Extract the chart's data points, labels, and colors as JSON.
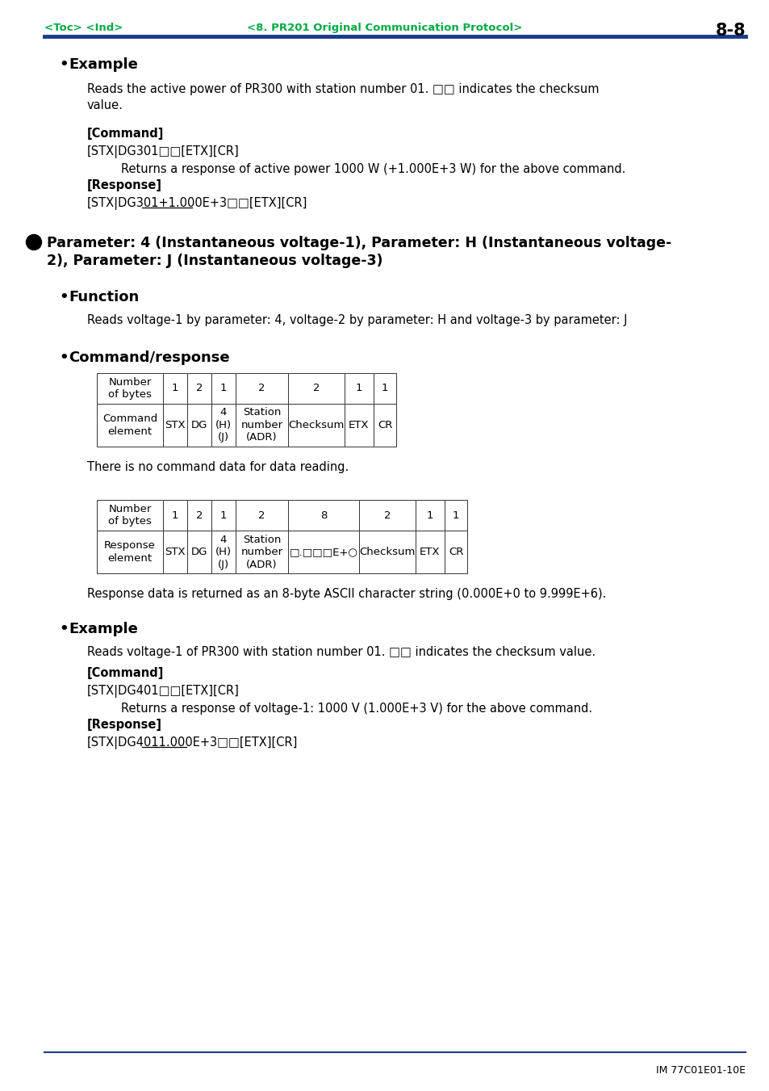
{
  "page_num": "8-8",
  "header_left": "<Toc> <Ind>",
  "header_center": "<8. PR201 Original Communication Protocol>",
  "header_color": "#00aa44",
  "header_line_color": "#1a3a8a",
  "bg_color": "#ffffff",
  "footer_text": "IM 77C01E01-10E",
  "section1_bullet": "Example",
  "section1_text1": "Reads the active power of PR300 with station number 01. □□ indicates the checksum\nvalue.",
  "section1_cmd_label": "[Command]",
  "section1_cmd_text": "[STX|DG301□□[ETX][CR]",
  "section1_cmd_response_text": "Returns a response of active power 1000 W (+1.000E+3 W) for the above command.",
  "section1_resp_label": "[Response]",
  "section1_resp_pre": "[STX|DG301",
  "section1_resp_underlined": "+1.000E+3",
  "section1_resp_post": "□□[ETX][CR]",
  "section2_line1": "Parameter: 4 (Instantaneous voltage-1), Parameter: H (Instantaneous voltage-",
  "section2_line2": "2), Parameter: J (Instantaneous voltage-3)",
  "section3_bullet": "Function",
  "section3_text": "Reads voltage-1 by parameter: 4, voltage-2 by parameter: H and voltage-3 by parameter: J",
  "section4_bullet": "Command/response",
  "cmd_table_header": [
    "Number\nof bytes",
    "1",
    "2",
    "1",
    "2",
    "2",
    "1",
    "1"
  ],
  "cmd_table_row": [
    "Command\nelement",
    "STX",
    "DG",
    "4\n(H)\n(J)",
    "Station\nnumber\n(ADR)",
    "Checksum",
    "ETX",
    "CR"
  ],
  "cmd_col_widths": [
    82,
    30,
    30,
    30,
    65,
    70,
    36,
    28
  ],
  "cmd_table_note": "There is no command data for data reading.",
  "resp_table_header": [
    "Number\nof bytes",
    "1",
    "2",
    "1",
    "2",
    "8",
    "2",
    "1",
    "1"
  ],
  "resp_table_row": [
    "Response\nelement",
    "STX",
    "DG",
    "4\n(H)\n(J)",
    "Station\nnumber\n(ADR)",
    "□.□□□E+○",
    "Checksum",
    "ETX",
    "CR"
  ],
  "resp_col_widths": [
    82,
    30,
    30,
    30,
    65,
    88,
    70,
    36,
    28
  ],
  "resp_table_note": "Response data is returned as an 8-byte ASCII character string (0.000E+0 to 9.999E+6).",
  "section5_bullet": "Example",
  "section5_text1": "Reads voltage-1 of PR300 with station number 01. □□ indicates the checksum value.",
  "section5_cmd_label": "[Command]",
  "section5_cmd_text": "[STX|DG401□□[ETX][CR]",
  "section5_cmd_response_text": "Returns a response of voltage-1: 1000 V (1.000E+3 V) for the above command.",
  "section5_resp_label": "[Response]",
  "section5_resp_pre": "[STX|DG401",
  "section5_resp_underlined": "1.000E+3",
  "section5_resp_post": "□□[ETX][CR]"
}
